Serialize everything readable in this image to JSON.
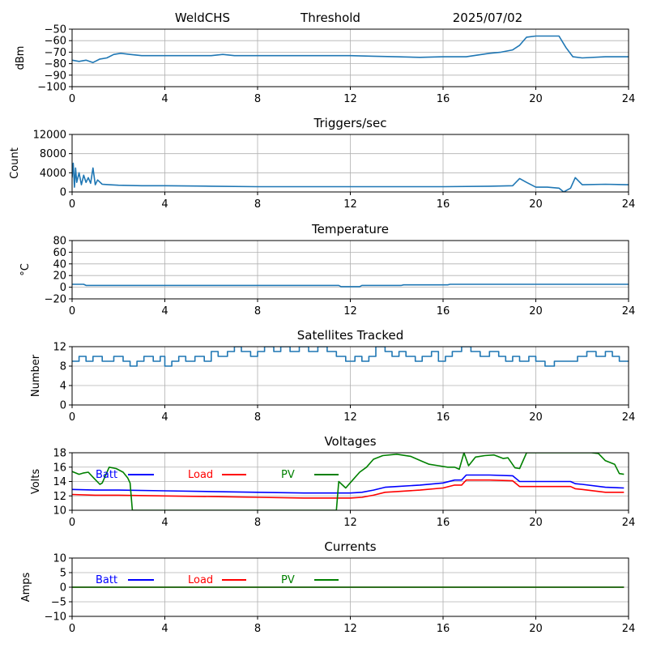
{
  "header": {
    "station": "WeldCHS",
    "mode": "Threshold",
    "date": "2025/07/02"
  },
  "colors": {
    "default": "#1f77b4",
    "batt": "#0000ff",
    "load": "#ff0000",
    "pv": "#008000",
    "grid": "#b0b0b0"
  },
  "chart_data": [
    {
      "type": "line",
      "title": "",
      "ylabel": "dBm",
      "xlim": [
        0,
        24
      ],
      "ylim": [
        -100,
        -50
      ],
      "xticks": [
        0,
        4,
        8,
        12,
        16,
        20,
        24
      ],
      "yticks": [
        -100,
        -90,
        -80,
        -70,
        -60,
        -50
      ],
      "grid": true,
      "series": [
        {
          "name": "",
          "color": "default",
          "x": [
            0,
            0.3,
            0.6,
            0.9,
            1.2,
            1.5,
            1.8,
            2.1,
            2.5,
            3,
            4,
            5,
            6,
            6.5,
            7,
            8,
            10,
            12,
            13,
            14,
            15,
            16,
            17,
            18,
            18.5,
            19,
            19.3,
            19.6,
            20,
            20.5,
            21,
            21.3,
            21.6,
            22,
            23,
            24
          ],
          "y": [
            -77,
            -78,
            -77,
            -79,
            -76,
            -75,
            -72,
            -71,
            -72,
            -73,
            -73,
            -73,
            -73,
            -72,
            -73,
            -73,
            -73,
            -73,
            -73.5,
            -74,
            -74.5,
            -74,
            -74,
            -71,
            -70,
            -68,
            -64,
            -57,
            -56,
            -56,
            -56,
            -66,
            -74,
            -75,
            -74,
            -74
          ]
        }
      ]
    },
    {
      "type": "line",
      "title": "Triggers/sec",
      "ylabel": "Count",
      "xlim": [
        0,
        24
      ],
      "ylim": [
        0,
        12000
      ],
      "xticks": [
        0,
        4,
        8,
        12,
        16,
        20,
        24
      ],
      "yticks": [
        0,
        4000,
        8000,
        12000
      ],
      "grid": true,
      "series": [
        {
          "name": "",
          "color": "default",
          "x": [
            0,
            0.05,
            0.1,
            0.15,
            0.2,
            0.3,
            0.4,
            0.5,
            0.6,
            0.7,
            0.8,
            0.9,
            1.0,
            1.1,
            1.3,
            1.6,
            2,
            3,
            4,
            6,
            8,
            10,
            12,
            14,
            16,
            18,
            19,
            19.3,
            19.6,
            20,
            20.5,
            21,
            21.2,
            21.5,
            21.7,
            22,
            23,
            24
          ],
          "y": [
            3000,
            6000,
            1000,
            5000,
            2000,
            4000,
            1500,
            3500,
            2000,
            3000,
            1800,
            5000,
            1500,
            2500,
            1600,
            1500,
            1400,
            1300,
            1300,
            1200,
            1100,
            1100,
            1100,
            1100,
            1100,
            1200,
            1300,
            2800,
            2000,
            1000,
            1000,
            800,
            0,
            800,
            3000,
            1500,
            1600,
            1500
          ]
        }
      ]
    },
    {
      "type": "line",
      "title": "Temperature",
      "ylabel": "°C",
      "xlim": [
        0,
        24
      ],
      "ylim": [
        -20,
        80
      ],
      "xticks": [
        0,
        4,
        8,
        12,
        16,
        20,
        24
      ],
      "yticks": [
        -20,
        0,
        20,
        40,
        60,
        80
      ],
      "grid": true,
      "series": [
        {
          "name": "",
          "color": "default",
          "x": [
            0,
            0.5,
            0.6,
            4,
            8,
            11.5,
            11.6,
            12.4,
            12.5,
            14.2,
            14.3,
            16.2,
            16.3,
            20,
            24
          ],
          "y": [
            5,
            5,
            3,
            3,
            3,
            3,
            1,
            1,
            3,
            3,
            4,
            4,
            5,
            5,
            5
          ]
        }
      ]
    },
    {
      "type": "line",
      "title": "Satellites Tracked",
      "ylabel": "Number",
      "xlim": [
        0,
        24
      ],
      "ylim": [
        0,
        12
      ],
      "xticks": [
        0,
        4,
        8,
        12,
        16,
        20,
        24
      ],
      "yticks": [
        0,
        4,
        8,
        12
      ],
      "grid": true,
      "series": [
        {
          "name": "",
          "color": "default",
          "step": true,
          "x": [
            0,
            0.3,
            0.6,
            0.9,
            1.3,
            1.8,
            2.2,
            2.5,
            2.8,
            3.1,
            3.5,
            3.8,
            4.0,
            4.3,
            4.6,
            4.9,
            5.3,
            5.7,
            6.0,
            6.3,
            6.7,
            7.0,
            7.3,
            7.7,
            8.0,
            8.3,
            8.7,
            9.0,
            9.4,
            9.8,
            10.2,
            10.6,
            11.0,
            11.4,
            11.8,
            12.2,
            12.5,
            12.8,
            13.1,
            13.5,
            13.8,
            14.1,
            14.4,
            14.8,
            15.1,
            15.5,
            15.8,
            16.1,
            16.4,
            16.8,
            17.2,
            17.6,
            18.0,
            18.4,
            18.7,
            19.0,
            19.3,
            19.7,
            20.0,
            20.4,
            20.8,
            21.4,
            21.8,
            22.2,
            22.6,
            23.0,
            23.3,
            23.6,
            24
          ],
          "y": [
            9,
            10,
            9,
            10,
            9,
            10,
            9,
            8,
            9,
            10,
            9,
            10,
            8,
            9,
            10,
            9,
            10,
            9,
            11,
            10,
            11,
            12,
            11,
            10,
            11,
            12,
            11,
            12,
            11,
            12,
            11,
            12,
            11,
            10,
            9,
            10,
            9,
            10,
            12,
            11,
            10,
            11,
            10,
            9,
            10,
            11,
            9,
            10,
            11,
            12,
            11,
            10,
            11,
            10,
            9,
            10,
            9,
            10,
            9,
            8,
            9,
            9,
            10,
            11,
            10,
            11,
            10,
            9,
            9
          ]
        }
      ]
    },
    {
      "type": "line",
      "title": "Voltages",
      "ylabel": "Volts",
      "xlim": [
        0,
        24
      ],
      "ylim": [
        10,
        18
      ],
      "xticks": [
        0,
        4,
        8,
        12,
        16,
        20,
        24
      ],
      "yticks": [
        10,
        12,
        14,
        16,
        18
      ],
      "grid": true,
      "legend": "top-left",
      "series": [
        {
          "name": "Batt",
          "color": "batt",
          "x": [
            0,
            1,
            2,
            4,
            6,
            8,
            10,
            12,
            12.5,
            13,
            13.5,
            14,
            15,
            16,
            16.5,
            16.8,
            17,
            18,
            19,
            19.3,
            20,
            21,
            21.5,
            21.7,
            22,
            23,
            23.8
          ],
          "y": [
            12.9,
            12.8,
            12.8,
            12.7,
            12.6,
            12.5,
            12.4,
            12.4,
            12.5,
            12.8,
            13.2,
            13.3,
            13.5,
            13.8,
            14.2,
            14.2,
            14.9,
            14.9,
            14.8,
            14.0,
            14.0,
            14.0,
            14.0,
            13.7,
            13.6,
            13.2,
            13.1
          ]
        },
        {
          "name": "Load",
          "color": "load",
          "x": [
            0,
            1,
            2,
            4,
            6,
            8,
            10,
            12,
            12.5,
            13,
            13.5,
            14,
            15,
            16,
            16.5,
            16.8,
            17,
            18,
            19,
            19.3,
            20,
            21,
            21.5,
            21.7,
            22,
            23,
            23.8
          ],
          "y": [
            12.2,
            12.1,
            12.1,
            12.0,
            11.9,
            11.8,
            11.7,
            11.7,
            11.8,
            12.1,
            12.5,
            12.6,
            12.8,
            13.1,
            13.5,
            13.5,
            14.2,
            14.2,
            14.1,
            13.3,
            13.3,
            13.3,
            13.3,
            13.0,
            12.9,
            12.5,
            12.5
          ]
        },
        {
          "name": "PV",
          "color": "pv",
          "x": [
            0,
            0.3,
            0.5,
            0.7,
            0.9,
            1.2,
            1.3,
            1.6,
            1.9,
            2.2,
            2.4,
            2.5,
            2.6,
            11.4,
            11.5,
            11.8,
            12.1,
            12.4,
            12.7,
            13.0,
            13.4,
            14.0,
            14.6,
            15.1,
            15.4,
            15.8,
            16.2,
            16.5,
            16.7,
            16.9,
            17.1,
            17.4,
            17.8,
            18.2,
            18.6,
            18.8,
            19.1,
            19.3,
            19.6,
            22.4,
            22.7,
            23.0,
            23.4,
            23.6,
            23.8
          ],
          "y": [
            15.4,
            15.0,
            15.2,
            15.3,
            14.6,
            13.6,
            13.8,
            16.0,
            15.8,
            15.3,
            14.5,
            13.8,
            10.0,
            10.0,
            14.0,
            13.1,
            14.2,
            15.3,
            16.0,
            17.1,
            17.6,
            17.8,
            17.5,
            16.8,
            16.4,
            16.2,
            16.0,
            16.0,
            15.7,
            18.0,
            16.2,
            17.4,
            17.6,
            17.7,
            17.2,
            17.3,
            15.9,
            15.8,
            18.0,
            18.0,
            17.9,
            16.9,
            16.4,
            15.1,
            15.0
          ]
        }
      ]
    },
    {
      "type": "line",
      "title": "Currents",
      "ylabel": "Amps",
      "xlim": [
        0,
        24
      ],
      "ylim": [
        -10,
        10
      ],
      "xticks": [
        0,
        4,
        8,
        12,
        16,
        20,
        24
      ],
      "yticks": [
        -10,
        -5,
        0,
        5,
        10
      ],
      "grid": true,
      "legend": "top-left",
      "series": [
        {
          "name": "Batt",
          "color": "batt",
          "x": [
            0,
            23.8
          ],
          "y": [
            0,
            0
          ]
        },
        {
          "name": "Load",
          "color": "load",
          "x": [
            0,
            23.8
          ],
          "y": [
            0,
            0
          ]
        },
        {
          "name": "PV",
          "color": "pv",
          "x": [
            0,
            23.8
          ],
          "y": [
            0,
            0
          ]
        }
      ]
    }
  ]
}
